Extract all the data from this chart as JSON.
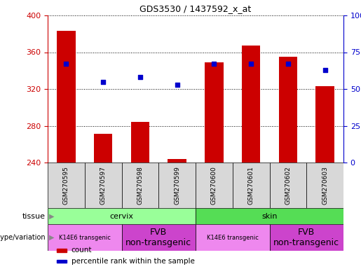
{
  "title": "GDS3530 / 1437592_x_at",
  "samples": [
    "GSM270595",
    "GSM270597",
    "GSM270598",
    "GSM270599",
    "GSM270600",
    "GSM270601",
    "GSM270602",
    "GSM270603"
  ],
  "counts": [
    383,
    271,
    284,
    244,
    349,
    367,
    355,
    323
  ],
  "percentile_ranks": [
    67,
    55,
    58,
    53,
    67,
    67,
    67,
    63
  ],
  "y_min": 240,
  "y_max": 400,
  "y_ticks": [
    240,
    280,
    320,
    360,
    400
  ],
  "y2_ticks": [
    0,
    25,
    50,
    75,
    100
  ],
  "bar_color": "#cc0000",
  "dot_color": "#0000cc",
  "tissue_cervix_color": "#99ff99",
  "tissue_skin_color": "#55dd55",
  "genotype_k14_color": "#ee88ee",
  "genotype_fvb_color": "#cc44cc",
  "axis_color_left": "#cc0000",
  "axis_color_right": "#0000cc",
  "sample_box_color": "#d8d8d8",
  "genotype_groups": [
    {
      "label": "K14E6 transgenic",
      "span": [
        0,
        2
      ],
      "color": "#ee88ee",
      "fontsize": 6
    },
    {
      "label": "FVB\nnon-transgenic",
      "span": [
        2,
        4
      ],
      "color": "#cc44cc",
      "fontsize": 9
    },
    {
      "label": "K14E6 transgenic",
      "span": [
        4,
        6
      ],
      "color": "#ee88ee",
      "fontsize": 6
    },
    {
      "label": "FVB\nnon-transgenic",
      "span": [
        6,
        8
      ],
      "color": "#cc44cc",
      "fontsize": 9
    }
  ]
}
